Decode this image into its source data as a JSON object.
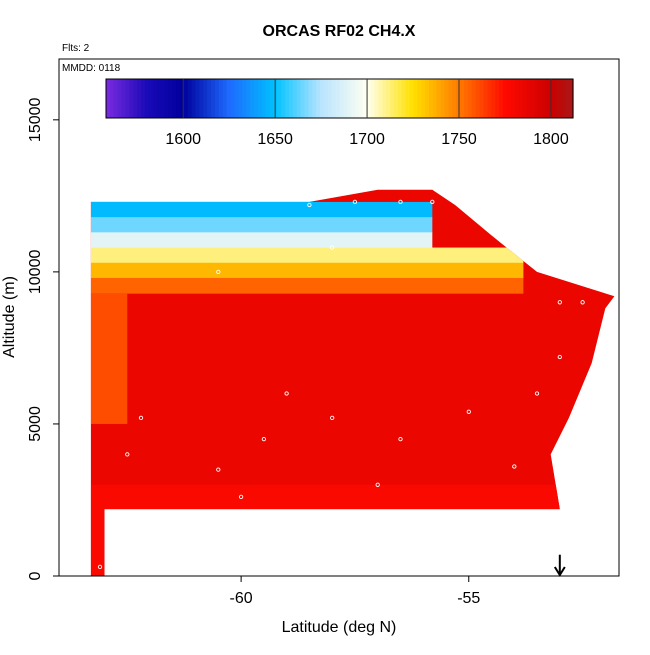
{
  "chart_data": {
    "type": "heatmap",
    "title": "ORCAS RF02 CH4.X",
    "annotations": [
      "Flts: 2",
      "MMDD: 0118"
    ],
    "xlabel": "Latitude (deg N)",
    "ylabel": "Altitude (m)",
    "xlim": [
      -64.0,
      -51.7
    ],
    "ylim": [
      0,
      17000
    ],
    "x_ticks": [
      -60,
      -55
    ],
    "x_tick_labels": [
      "-60",
      "-55"
    ],
    "y_ticks": [
      0,
      5000,
      10000,
      15000
    ],
    "y_tick_labels": [
      "0",
      "5000",
      "10000",
      "15000"
    ],
    "colorbar": {
      "range": [
        1558,
        1812
      ],
      "ticks": [
        1600,
        1650,
        1700,
        1750,
        1800
      ],
      "tick_labels": [
        "1600",
        "1650",
        "1700",
        "1750",
        "1800"
      ],
      "stops": [
        {
          "value": 1558,
          "color": "#7b2be0"
        },
        {
          "value": 1580,
          "color": "#1a0ab8"
        },
        {
          "value": 1600,
          "color": "#00009c"
        },
        {
          "value": 1625,
          "color": "#1e6aff"
        },
        {
          "value": 1650,
          "color": "#00c2ff"
        },
        {
          "value": 1675,
          "color": "#b9e4ff"
        },
        {
          "value": 1700,
          "color": "#fffff0"
        },
        {
          "value": 1725,
          "color": "#ffe000"
        },
        {
          "value": 1750,
          "color": "#ff7a00"
        },
        {
          "value": 1775,
          "color": "#ff0a00"
        },
        {
          "value": 1800,
          "color": "#cc0000"
        },
        {
          "value": 1812,
          "color": "#a81818"
        }
      ]
    },
    "profile_curtain": {
      "south_lat": -63.3,
      "north_edge": [
        [
          -63.0,
          2200
        ],
        [
          -60.0,
          2200
        ],
        [
          -55.0,
          2200
        ],
        [
          -53.0,
          2200
        ],
        [
          -53.2,
          4000
        ],
        [
          -52.8,
          5200
        ],
        [
          -52.3,
          7000
        ],
        [
          -52.0,
          8800
        ],
        [
          -51.8,
          9200
        ],
        [
          -53.5,
          10000
        ],
        [
          -54.5,
          11200
        ],
        [
          -55.3,
          12200
        ],
        [
          -55.8,
          12700
        ],
        [
          -57.0,
          12700
        ],
        [
          -58.5,
          12300
        ],
        [
          -63.0,
          12300
        ]
      ],
      "background_value": 1785,
      "low_altitude_value": 1778,
      "upper_layers": [
        {
          "alt_range": [
            11800,
            12300
          ],
          "value": 1648
        },
        {
          "alt_range": [
            11300,
            11800
          ],
          "value": 1665
        },
        {
          "alt_range": [
            10800,
            11300
          ],
          "value": 1690
        },
        {
          "alt_range": [
            10300,
            10800
          ],
          "value": 1712
        },
        {
          "alt_range": [
            9800,
            10300
          ],
          "value": 1735
        },
        {
          "alt_range": [
            9300,
            9800
          ],
          "value": 1755
        }
      ],
      "sample_points": [
        [
          -63.1,
          300
        ],
        [
          -62.8,
          1200
        ],
        [
          -62.5,
          4000
        ],
        [
          -62.2,
          5200
        ],
        [
          -61.5,
          500
        ],
        [
          -61.0,
          1500
        ],
        [
          -60.5,
          3500
        ],
        [
          -60.0,
          2600
        ],
        [
          -59.5,
          4500
        ],
        [
          -59.0,
          6000
        ],
        [
          -58.5,
          1300
        ],
        [
          -58.0,
          5200
        ],
        [
          -57.5,
          800
        ],
        [
          -57.0,
          3000
        ],
        [
          -56.5,
          4500
        ],
        [
          -56.0,
          600
        ],
        [
          -55.5,
          2000
        ],
        [
          -55.0,
          5400
        ],
        [
          -54.5,
          1700
        ],
        [
          -54.0,
          3600
        ],
        [
          -53.5,
          6000
        ],
        [
          -53.0,
          7200
        ],
        [
          -52.5,
          9000
        ],
        [
          -58.5,
          12200
        ],
        [
          -57.5,
          12300
        ],
        [
          -56.5,
          12300
        ],
        [
          -55.8,
          12300
        ],
        [
          -60.5,
          10000
        ],
        [
          -58.0,
          10800
        ],
        [
          -53.0,
          9000
        ]
      ]
    },
    "marker": {
      "type": "down-arrow",
      "lat": -53.0,
      "alt_range": [
        0,
        700
      ]
    }
  }
}
